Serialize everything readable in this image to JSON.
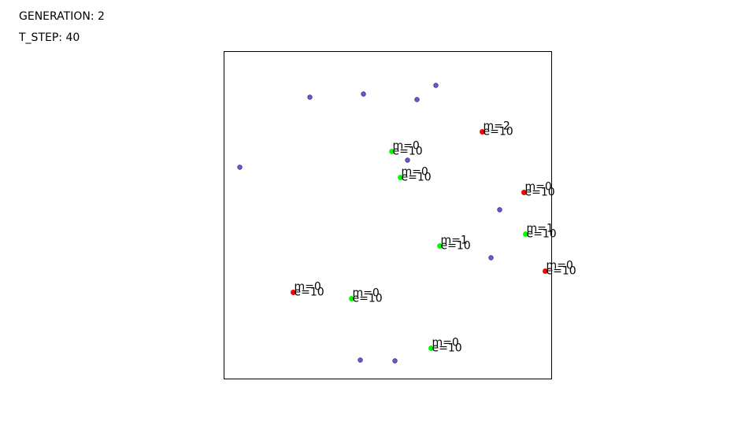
{
  "hud": {
    "generation_label": "GENERATION: ",
    "generation": "2",
    "t_step_label": "T_STEP: ",
    "t_step": "40"
  },
  "chart_data": {
    "type": "scatter",
    "title": "",
    "xlabel": "",
    "ylabel": "",
    "xlim": [
      0,
      416
    ],
    "ylim": [
      0,
      416
    ],
    "grid": false,
    "colors": {
      "food": "#6a5acd",
      "organism_green": "#00ff00",
      "organism_red": "#ff0000"
    },
    "food": [
      {
        "x": 109,
        "y": 358
      },
      {
        "x": 177,
        "y": 362
      },
      {
        "x": 245,
        "y": 355
      },
      {
        "x": 269,
        "y": 373
      },
      {
        "x": 20,
        "y": 269
      },
      {
        "x": 233,
        "y": 278
      },
      {
        "x": 350,
        "y": 215
      },
      {
        "x": 339,
        "y": 154
      },
      {
        "x": 173,
        "y": 24
      },
      {
        "x": 217,
        "y": 23
      }
    ],
    "organisms": [
      {
        "x": 328,
        "y": 314,
        "color": "red",
        "m": "m=2",
        "e": "e=10"
      },
      {
        "x": 213,
        "y": 289,
        "color": "green",
        "m": "m=0",
        "e": "e=10"
      },
      {
        "x": 224,
        "y": 256,
        "color": "green",
        "m": "m=0",
        "e": "e=10"
      },
      {
        "x": 381,
        "y": 237,
        "color": "red",
        "m": "m=0",
        "e": "e=10"
      },
      {
        "x": 383,
        "y": 184,
        "color": "green",
        "m": "m=1",
        "e": "e=10"
      },
      {
        "x": 274,
        "y": 169,
        "color": "green",
        "m": "m=1",
        "e": "e=10"
      },
      {
        "x": 408,
        "y": 137,
        "color": "red",
        "m": "m=0",
        "e": "e=10"
      },
      {
        "x": 88,
        "y": 110,
        "color": "red",
        "m": "m=0",
        "e": "e=10"
      },
      {
        "x": 162,
        "y": 102,
        "color": "green",
        "m": "m=0",
        "e": "e=10"
      },
      {
        "x": 263,
        "y": 39,
        "color": "green",
        "m": "m=0",
        "e": "e=10"
      }
    ]
  }
}
